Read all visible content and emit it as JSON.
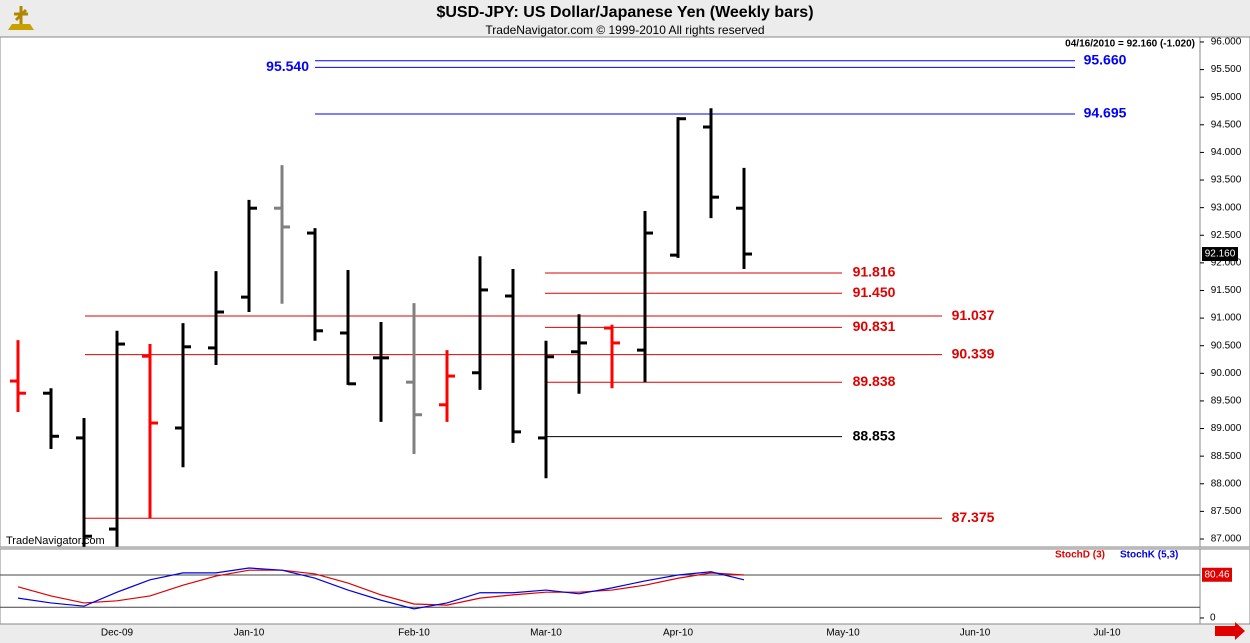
{
  "chart_data": [
    {
      "type": "ohlc",
      "title": "$USD-JPY:  US Dollar/Japanese Yen  (Weekly bars)",
      "subtitle": "TradeNavigator.com © 1999-2010 All rights reserved",
      "info": "04/16/2010 = 92.160 (-1.020)",
      "watermark": "TradeNavigator.com",
      "categories": [
        null,
        null,
        null,
        "Dec-09",
        null,
        null,
        null,
        "Jan-10",
        null,
        null,
        null,
        null,
        "Feb-10",
        null,
        null,
        null,
        "Mar-10",
        null,
        null,
        null,
        "Apr-10",
        null,
        null,
        null,
        null,
        "May-10",
        null,
        null,
        null,
        "Jun-10",
        null,
        null,
        null,
        "Jul-10",
        null,
        null
      ],
      "open": [
        89.86,
        89.64,
        88.83,
        87.18,
        90.31,
        89.01,
        90.46,
        91.38,
        92.99,
        92.54,
        90.73,
        90.28,
        89.84,
        89.43,
        90.01,
        91.4,
        88.83,
        90.39,
        90.82,
        90.42,
        92.14,
        94.46,
        92.99,
        null,
        null,
        null,
        null,
        null,
        null,
        null,
        null,
        null,
        null,
        null,
        null,
        null
      ],
      "high": [
        90.6,
        89.73,
        89.19,
        90.77,
        90.53,
        90.91,
        91.85,
        93.14,
        93.77,
        92.63,
        91.87,
        90.93,
        91.27,
        90.42,
        92.12,
        91.89,
        90.59,
        91.07,
        90.88,
        92.94,
        94.64,
        94.8,
        93.72,
        null,
        null,
        null,
        null,
        null,
        null,
        null,
        null,
        null,
        null,
        null,
        null,
        null
      ],
      "low": [
        89.3,
        88.63,
        86.86,
        86.86,
        87.38,
        88.3,
        90.15,
        91.11,
        91.26,
        90.59,
        89.79,
        89.12,
        88.54,
        89.12,
        89.7,
        88.74,
        88.1,
        89.63,
        89.73,
        89.84,
        92.09,
        92.81,
        91.89,
        null,
        null,
        null,
        null,
        null,
        null,
        null,
        null,
        null,
        null,
        null,
        null,
        null
      ],
      "close": [
        89.64,
        88.86,
        87.05,
        90.53,
        89.1,
        90.48,
        91.11,
        92.99,
        92.65,
        90.77,
        89.81,
        90.28,
        89.25,
        89.95,
        91.51,
        88.94,
        90.3,
        90.55,
        90.55,
        92.54,
        94.61,
        93.19,
        92.16,
        null,
        null,
        null,
        null,
        null,
        null,
        null,
        null,
        null,
        null,
        null,
        null,
        null
      ],
      "bar_colors": [
        "#ff0000",
        "#000000",
        "#000000",
        "#000000",
        "#ff0000",
        "#000000",
        "#000000",
        "#000000",
        "#808080",
        "#000000",
        "#000000",
        "#000000",
        "#808080",
        "#ff0000",
        "#000000",
        "#000000",
        "#000000",
        "#000000",
        "#ff0000",
        "#000000",
        "#000000",
        "#000000",
        "#000000",
        null,
        null,
        null,
        null,
        null,
        null,
        null,
        null,
        null,
        null,
        null,
        null,
        null
      ],
      "ylim": [
        86.855,
        96.09
      ],
      "yticks": [
        {
          "value": 87,
          "label": "87.000"
        },
        {
          "value": 87.5,
          "label": "87.500"
        },
        {
          "value": 88,
          "label": "88.000"
        },
        {
          "value": 88.5,
          "label": "88.500"
        },
        {
          "value": 89,
          "label": "89.000"
        },
        {
          "value": 89.5,
          "label": "89.500"
        },
        {
          "value": 90,
          "label": "90.000"
        },
        {
          "value": 90.5,
          "label": "90.500"
        },
        {
          "value": 91,
          "label": "91.000"
        },
        {
          "value": 91.5,
          "label": "91.500"
        },
        {
          "value": 92,
          "label": "92.000"
        },
        {
          "value": 92.5,
          "label": "92.500"
        },
        {
          "value": 93,
          "label": "93.000"
        },
        {
          "value": 93.5,
          "label": "93.500"
        },
        {
          "value": 94,
          "label": "94.000"
        },
        {
          "value": 94.5,
          "label": "94.500"
        },
        {
          "value": 95,
          "label": "95.000"
        },
        {
          "value": 95.5,
          "label": "95.500"
        },
        {
          "value": 96,
          "label": "96.000"
        }
      ],
      "last": {
        "value": 92.16,
        "label": "92.160"
      },
      "levels": [
        {
          "value": 95.66,
          "label": "95.660",
          "color": "#0000ff"
        },
        {
          "value": 95.54,
          "label": "95.540",
          "color": "#0000ff"
        },
        {
          "value": 94.695,
          "label": "94.695",
          "color": "#0000ff"
        },
        {
          "value": 91.816,
          "label": "91.816",
          "color": "#e00000"
        },
        {
          "value": 91.45,
          "label": "91.450",
          "color": "#e00000"
        },
        {
          "value": 91.037,
          "label": "91.037",
          "color": "#e00000"
        },
        {
          "value": 90.831,
          "label": "90.831",
          "color": "#e00000"
        },
        {
          "value": 90.339,
          "label": "90.339",
          "color": "#e00000"
        },
        {
          "value": 89.838,
          "label": "89.838",
          "color": "#e00000"
        },
        {
          "value": 88.853,
          "label": "88.853",
          "color": "#000000"
        },
        {
          "value": 87.375,
          "label": "87.375",
          "color": "#e00000"
        }
      ]
    },
    {
      "type": "line",
      "series": [
        {
          "name": "StochD (3)",
          "color": "#e00000",
          "values": [
            58,
            41,
            28,
            32,
            41,
            61,
            78,
            89,
            89,
            82,
            65,
            43,
            26,
            24,
            37,
            43,
            48,
            48,
            52,
            61,
            74,
            84,
            80,
            null,
            null,
            null,
            null,
            null,
            null,
            null,
            null,
            null,
            null,
            null,
            null,
            null
          ]
        },
        {
          "name": "StochK (5,3)",
          "color": "#0000e0",
          "values": [
            37,
            28,
            22,
            48,
            71,
            84,
            84,
            93,
            89,
            74,
            52,
            33,
            17,
            28,
            47,
            47,
            52,
            45,
            56,
            69,
            80,
            86,
            71,
            null,
            null,
            null,
            null,
            null,
            null,
            null,
            null,
            null,
            null,
            null,
            null,
            null
          ]
        }
      ],
      "ylim": [
        -11.2,
        128.4
      ],
      "yticks": [
        0
      ],
      "ref_lines": [
        20,
        80
      ],
      "last": {
        "value": 80.46,
        "label": "80.46"
      }
    }
  ]
}
